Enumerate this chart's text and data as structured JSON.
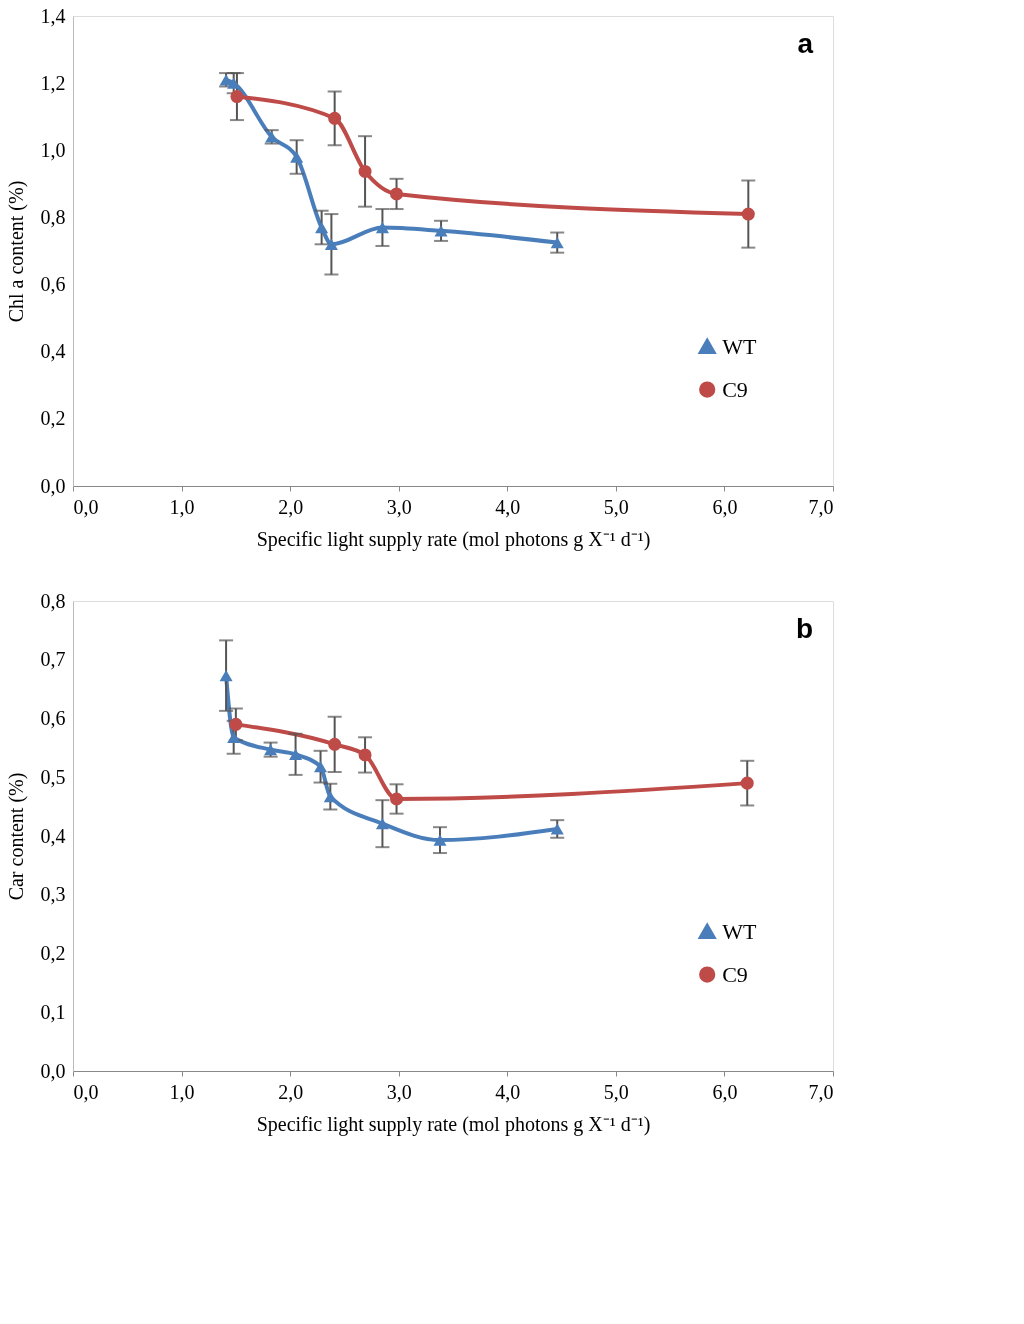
{
  "chart_data": [
    {
      "type": "line",
      "xlabel": "Specific light supply rate (mol photons g X⁻¹ d⁻¹)",
      "ylabel": "Chl a content (%)",
      "annotations": [
        "a"
      ],
      "xlim": [
        0,
        7
      ],
      "xticks": [
        {
          "value": 0,
          "label": "0,0"
        },
        {
          "value": 1,
          "label": "1,0"
        },
        {
          "value": 2,
          "label": "2,0"
        },
        {
          "value": 3,
          "label": "3,0"
        },
        {
          "value": 4,
          "label": "4,0"
        },
        {
          "value": 5,
          "label": "5,0"
        },
        {
          "value": 6,
          "label": "6,0"
        },
        {
          "value": 7,
          "label": "7,0"
        }
      ],
      "ylim": [
        0,
        1.4
      ],
      "yticks": [
        {
          "value": 0,
          "label": "0,0"
        },
        {
          "value": 0.2,
          "label": "0,2"
        },
        {
          "value": 0.4,
          "label": "0,4"
        },
        {
          "value": 0.6,
          "label": "0,6"
        },
        {
          "value": 0.8,
          "label": "0,8"
        },
        {
          "value": 1.0,
          "label": "1,0"
        },
        {
          "value": 1.2,
          "label": "1,2"
        },
        {
          "value": 1.4,
          "label": "1,4"
        }
      ],
      "grid": false,
      "legend": "right",
      "line_style": "solid",
      "series": [
        {
          "name": "WT",
          "color": "#4a7ebb",
          "marker": "triangle",
          "x": [
            1.41,
            1.48,
            1.83,
            2.06,
            2.29,
            2.38,
            2.85,
            3.39,
            4.46
          ],
          "values": [
            1.21,
            1.2,
            1.04,
            0.98,
            0.77,
            0.72,
            0.77,
            0.76,
            0.725
          ],
          "errors": [
            0.02,
            0.03,
            0.02,
            0.05,
            0.05,
            0.09,
            0.055,
            0.03,
            0.03
          ]
        },
        {
          "name": "C9",
          "color": "#be4b48",
          "marker": "circle",
          "x": [
            1.51,
            2.41,
            2.69,
            2.98,
            6.22
          ],
          "values": [
            1.16,
            1.095,
            0.937,
            0.87,
            0.81
          ],
          "errors": [
            0.07,
            0.08,
            0.105,
            0.045,
            0.1
          ]
        }
      ]
    },
    {
      "type": "line",
      "xlabel": "Specific light supply rate (mol photons g X⁻¹ d⁻¹)",
      "ylabel": "Car content  (%)",
      "annotations": [
        "b"
      ],
      "xlim": [
        0,
        7
      ],
      "xticks": [
        {
          "value": 0,
          "label": "0,0"
        },
        {
          "value": 1,
          "label": "1,0"
        },
        {
          "value": 2,
          "label": "2,0"
        },
        {
          "value": 3,
          "label": "3,0"
        },
        {
          "value": 4,
          "label": "4,0"
        },
        {
          "value": 5,
          "label": "5,0"
        },
        {
          "value": 6,
          "label": "6,0"
        },
        {
          "value": 7,
          "label": "7,0"
        }
      ],
      "ylim": [
        0,
        0.8
      ],
      "yticks": [
        {
          "value": 0,
          "label": "0,0"
        },
        {
          "value": 0.1,
          "label": "0,1"
        },
        {
          "value": 0.2,
          "label": "0,2"
        },
        {
          "value": 0.3,
          "label": "0,3"
        },
        {
          "value": 0.4,
          "label": "0,4"
        },
        {
          "value": 0.5,
          "label": "0,5"
        },
        {
          "value": 0.6,
          "label": "0,6"
        },
        {
          "value": 0.7,
          "label": "0,7"
        },
        {
          "value": 0.8,
          "label": "0,8"
        }
      ],
      "grid": false,
      "legend": "right",
      "line_style": "solid",
      "series": [
        {
          "name": "WT",
          "color": "#4a7ebb",
          "marker": "triangle",
          "x": [
            1.41,
            1.48,
            1.82,
            2.05,
            2.28,
            2.37,
            2.85,
            3.38,
            4.46
          ],
          "values": [
            0.673,
            0.568,
            0.547,
            0.539,
            0.518,
            0.467,
            0.421,
            0.393,
            0.412
          ],
          "errors": [
            0.06,
            0.028,
            0.012,
            0.035,
            0.027,
            0.022,
            0.04,
            0.022,
            0.015
          ]
        },
        {
          "name": "C9",
          "color": "#be4b48",
          "marker": "circle",
          "x": [
            1.5,
            2.41,
            2.69,
            2.98,
            6.21
          ],
          "values": [
            0.59,
            0.556,
            0.538,
            0.463,
            0.49
          ],
          "errors": [
            0.027,
            0.047,
            0.03,
            0.025,
            0.038
          ]
        }
      ]
    }
  ]
}
